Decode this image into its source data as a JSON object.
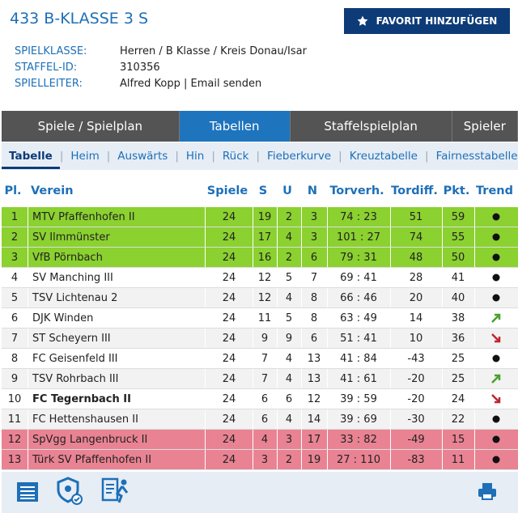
{
  "header": {
    "title": "433 B-KLASSE 3 S",
    "favorite_button": "FAVORIT HINZUFÜGEN",
    "info": [
      {
        "label": "SPIELKLASSE:",
        "value": "Herren / B Klasse / Kreis Donau/Isar"
      },
      {
        "label": "STAFFEL-ID:",
        "value": "310356"
      },
      {
        "label": "SPIELLEITER:",
        "value": "Alfred Kopp",
        "link": "Email senden"
      }
    ]
  },
  "tabs": [
    "Spiele / Spielplan",
    "Tabellen",
    "Staffelspielplan",
    "Spieler"
  ],
  "active_tab": 1,
  "subtabs": [
    "Tabelle",
    "Heim",
    "Auswärts",
    "Hin",
    "Rück",
    "Fieberkurve",
    "Kreuztabelle",
    "Fairnesstabelle"
  ],
  "active_subtab": 0,
  "table": {
    "columns": [
      "Pl.",
      "Verein",
      "Spiele",
      "S",
      "U",
      "N",
      "Torverh.",
      "Tordiff.",
      "Pkt.",
      "Trend"
    ],
    "rows": [
      {
        "cells": [
          1,
          "MTV Pfaffenhofen II",
          24,
          19,
          2,
          3,
          "74 : 23",
          51,
          59
        ],
        "trend": "same",
        "highlight": "#8bd130"
      },
      {
        "cells": [
          2,
          "SV Ilmmünster",
          24,
          17,
          4,
          3,
          "101 : 27",
          74,
          55
        ],
        "trend": "same",
        "highlight": "#8bd130"
      },
      {
        "cells": [
          3,
          "VfB Pörnbach",
          24,
          16,
          2,
          6,
          "79 : 31",
          48,
          50
        ],
        "trend": "same",
        "highlight": "#8bd130"
      },
      {
        "cells": [
          4,
          "SV Manching III",
          24,
          12,
          5,
          7,
          "69 : 41",
          28,
          41
        ],
        "trend": "same"
      },
      {
        "cells": [
          5,
          "TSV Lichtenau 2",
          24,
          12,
          4,
          8,
          "66 : 46",
          20,
          40
        ],
        "trend": "same"
      },
      {
        "cells": [
          6,
          "DJK Winden",
          24,
          11,
          5,
          8,
          "63 : 49",
          14,
          38
        ],
        "trend": "up"
      },
      {
        "cells": [
          7,
          "ST Scheyern III",
          24,
          9,
          9,
          6,
          "51 : 41",
          10,
          36
        ],
        "trend": "down"
      },
      {
        "cells": [
          8,
          "FC Geisenfeld III",
          24,
          7,
          4,
          13,
          "41 : 84",
          -43,
          25
        ],
        "trend": "same"
      },
      {
        "cells": [
          9,
          "TSV Rohrbach III",
          24,
          7,
          4,
          13,
          "41 : 61",
          -20,
          25
        ],
        "trend": "up"
      },
      {
        "cells": [
          10,
          "FC Tegernbach II",
          24,
          6,
          6,
          12,
          "39 : 59",
          -20,
          24
        ],
        "trend": "down",
        "bold": true
      },
      {
        "cells": [
          11,
          "FC Hettenshausen II",
          24,
          6,
          4,
          14,
          "39 : 69",
          -30,
          22
        ],
        "trend": "same"
      },
      {
        "cells": [
          12,
          "SpVgg Langenbruck II",
          24,
          4,
          3,
          17,
          "33 : 82",
          -49,
          15
        ],
        "trend": "same",
        "highlight": "#e98393"
      },
      {
        "cells": [
          13,
          "Türk SV Pfaffenhofen II",
          24,
          3,
          2,
          19,
          "27 : 110",
          -83,
          11
        ],
        "trend": "same",
        "highlight": "#e98393"
      }
    ]
  }
}
